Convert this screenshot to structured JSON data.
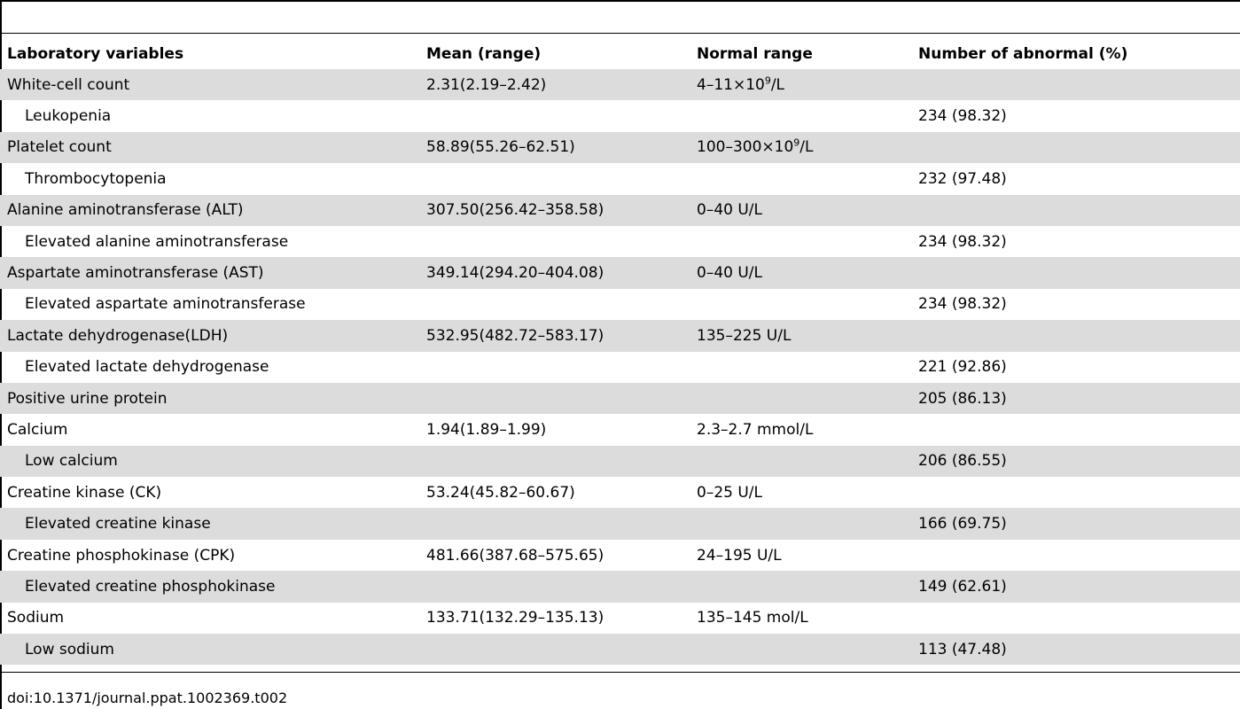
{
  "table": {
    "headers": [
      "Laboratory variables",
      "Mean (range)",
      "Normal range",
      "Number of abnormal (%)"
    ],
    "rows": [
      {
        "variable": "White-cell count",
        "mean": "2.31(2.19–2.42)",
        "normal_pre": "4–11×10",
        "normal_sup": "9",
        "normal_post": "/L",
        "abnormal": "",
        "sub": false
      },
      {
        "variable": "Leukopenia",
        "mean": "",
        "normal_pre": "",
        "normal_sup": "",
        "normal_post": "",
        "abnormal": "234 (98.32)",
        "sub": true
      },
      {
        "variable": "Platelet count",
        "mean": "58.89(55.26–62.51)",
        "normal_pre": "100–300×10",
        "normal_sup": "9",
        "normal_post": "/L",
        "abnormal": "",
        "sub": false
      },
      {
        "variable": "Thrombocytopenia",
        "mean": "",
        "normal_pre": "",
        "normal_sup": "",
        "normal_post": "",
        "abnormal": "232 (97.48)",
        "sub": true
      },
      {
        "variable": "Alanine aminotransferase (ALT)",
        "mean": "307.50(256.42–358.58)",
        "normal_pre": "0–40 U/L",
        "normal_sup": "",
        "normal_post": "",
        "abnormal": "",
        "sub": false
      },
      {
        "variable": "Elevated alanine aminotransferase",
        "mean": "",
        "normal_pre": "",
        "normal_sup": "",
        "normal_post": "",
        "abnormal": "234 (98.32)",
        "sub": true
      },
      {
        "variable": "Aspartate aminotransferase (AST)",
        "mean": "349.14(294.20–404.08)",
        "normal_pre": "0–40 U/L",
        "normal_sup": "",
        "normal_post": "",
        "abnormal": "",
        "sub": false
      },
      {
        "variable": "Elevated aspartate aminotransferase",
        "mean": "",
        "normal_pre": "",
        "normal_sup": "",
        "normal_post": "",
        "abnormal": "234 (98.32)",
        "sub": true
      },
      {
        "variable": "Lactate dehydrogenase(LDH)",
        "mean": "532.95(482.72–583.17)",
        "normal_pre": "135–225 U/L",
        "normal_sup": "",
        "normal_post": "",
        "abnormal": "",
        "sub": false
      },
      {
        "variable": "Elevated lactate dehydrogenase",
        "mean": "",
        "normal_pre": "",
        "normal_sup": "",
        "normal_post": "",
        "abnormal": "221 (92.86)",
        "sub": true
      },
      {
        "variable": "Positive urine protein",
        "mean": "",
        "normal_pre": "",
        "normal_sup": "",
        "normal_post": "",
        "abnormal": "205 (86.13)",
        "sub": false
      },
      {
        "variable": "Calcium",
        "mean": "1.94(1.89–1.99)",
        "normal_pre": "2.3–2.7 mmol/L",
        "normal_sup": "",
        "normal_post": "",
        "abnormal": "",
        "sub": false
      },
      {
        "variable": "Low calcium",
        "mean": "",
        "normal_pre": "",
        "normal_sup": "",
        "normal_post": "",
        "abnormal": "206 (86.55)",
        "sub": true
      },
      {
        "variable": "Creatine kinase (CK)",
        "mean": "53.24(45.82–60.67)",
        "normal_pre": "0–25 U/L",
        "normal_sup": "",
        "normal_post": "",
        "abnormal": "",
        "sub": false
      },
      {
        "variable": "Elevated creatine kinase",
        "mean": "",
        "normal_pre": "",
        "normal_sup": "",
        "normal_post": "",
        "abnormal": "166 (69.75)",
        "sub": true
      },
      {
        "variable": "Creatine phosphokinase (CPK)",
        "mean": "481.66(387.68–575.65)",
        "normal_pre": "24–195 U/L",
        "normal_sup": "",
        "normal_post": "",
        "abnormal": "",
        "sub": false
      },
      {
        "variable": "Elevated creatine phosphokinase",
        "mean": "",
        "normal_pre": "",
        "normal_sup": "",
        "normal_post": "",
        "abnormal": "149 (62.61)",
        "sub": true
      },
      {
        "variable": "Sodium",
        "mean": "133.71(132.29–135.13)",
        "normal_pre": "135–145 mol/L",
        "normal_sup": "",
        "normal_post": "",
        "abnormal": "",
        "sub": false
      },
      {
        "variable": "Low sodium",
        "mean": "",
        "normal_pre": "",
        "normal_sup": "",
        "normal_post": "",
        "abnormal": "113 (47.48)",
        "sub": true
      }
    ]
  },
  "footer": {
    "doi": "doi:10.1371/journal.ppat.1002369.t002"
  },
  "colors": {
    "row_shade": "#dcdcdc",
    "rule": "#000000"
  }
}
